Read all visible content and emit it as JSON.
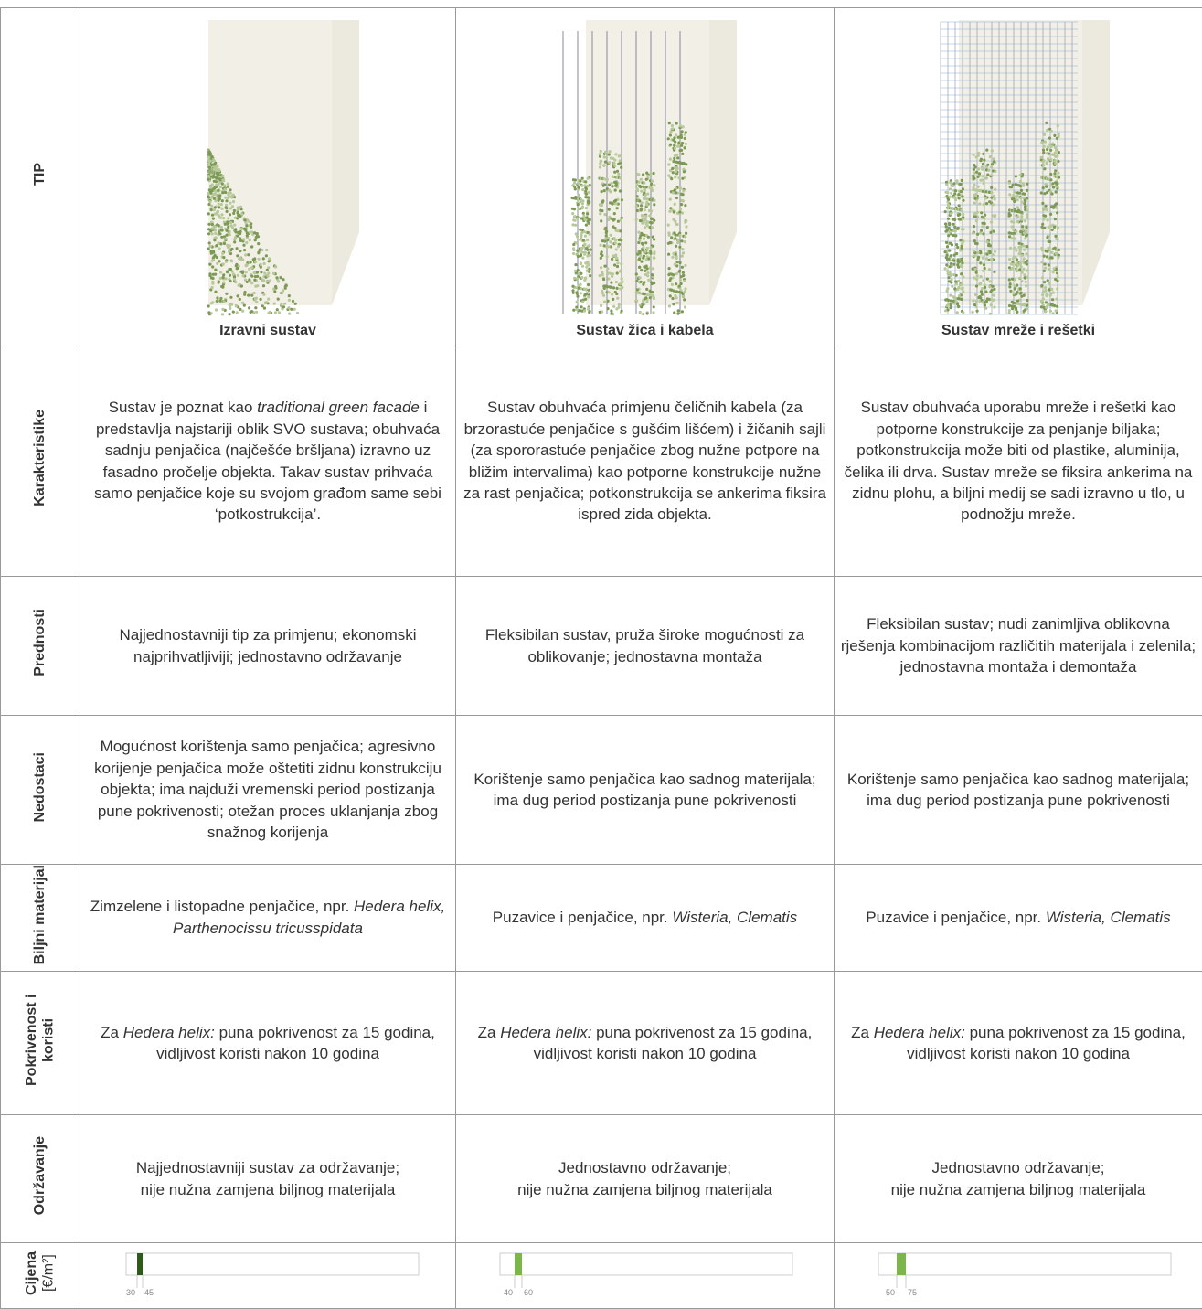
{
  "table": {
    "header": {
      "label": "TIP",
      "columns": [
        "Izravni sustav",
        "Sustav žica i kabela",
        "Sustav mreže i rešetki"
      ]
    },
    "rows": [
      {
        "label": "Karakteristike",
        "cells": [
          [
            "Sustav je poznat kao ",
            {
              "text": "traditional green facade",
              "em": true
            },
            " i predstavlja najstariji oblik SVO sustava; obuhvaća sadnju penjačica (najčešće bršljana) izravno uz fasadno pročelje objekta. Takav sustav prihvaća samo penjačice koje su svojom građom same sebi ‘potkostrukcija’."
          ],
          [
            "Sustav obuhvaća primjenu čeličnih kabela (za brzorastuće penjačice s gušćim lišćem) i žičanih sajli (za spororastuće penjačice zbog nužne potpore na bližim intervalima) kao potporne konstrukcije nužne za rast penjačica; potkonstrukcija se ankerima fiksira ispred zida objekta."
          ],
          [
            "Sustav obuhvaća uporabu mreže i rešetki kao potporne konstrukcije za penjanje biljaka; potkonstrukcija može biti od plastike, aluminija, čelika ili drva. Sustav mreže se fiksira ankerima na zidnu plohu, a biljni medij se sadi izravno u tlo, u podnožju mreže."
          ]
        ]
      },
      {
        "label": "Prednosti",
        "cells": [
          [
            "Najjednostavniji tip za primjenu; ekonomski najprihvatljiviji; jednostavno održavanje"
          ],
          [
            "Fleksibilan sustav, pruža široke mogućnosti za oblikovanje; jednostavna montaža"
          ],
          [
            "Fleksibilan sustav; nudi zanimljiva oblikovna rješenja kombinacijom različitih materijala i zelenila; jednostavna montaža i demontaža"
          ]
        ]
      },
      {
        "label": "Nedostaci",
        "cells": [
          [
            "Mogućnost korištenja samo penjačica; agresivno korijenje penjačica može oštetiti zidnu konstrukciju objekta; ima najduži vremenski period postizanja pune pokrivenosti; otežan proces uklanjanja zbog snažnog korijenja"
          ],
          [
            "Korištenje samo penjačica kao sadnog materijala; ima dug period postizanja pune pokrivenosti"
          ],
          [
            "Korištenje samo penjačica kao sadnog materijala; ima dug period postizanja pune pokrivenosti"
          ]
        ]
      },
      {
        "label": "Biljni materijal",
        "cells": [
          [
            "Zimzelene i listopadne penjačice, npr. ",
            {
              "text": "Hedera helix, Parthenocissu tricusspidata",
              "em": true
            }
          ],
          [
            "Puzavice i penjačice, npr. ",
            {
              "text": "Wisteria, Clematis",
              "em": true
            }
          ],
          [
            "Puzavice i penjačice, npr. ",
            {
              "text": "Wisteria, Clematis",
              "em": true
            }
          ]
        ]
      },
      {
        "label": "Pokrivenost i koristi",
        "cells": [
          [
            "Za ",
            {
              "text": "Hedera helix:",
              "em": true
            },
            " puna pokrivenost za 15 godina, vidljivost koristi nakon 10 godina"
          ],
          [
            "Za ",
            {
              "text": "Hedera helix:",
              "em": true
            },
            " puna pokrivenost za 15 godina, vidljivost koristi nakon 10 godina"
          ],
          [
            "Za ",
            {
              "text": "Hedera helix:",
              "em": true
            },
            " puna pokrivenost za 15 godina, vidljivost koristi nakon 10 godina"
          ]
        ]
      },
      {
        "label": "Održavanje",
        "cells": [
          [
            "Najjednostavniji sustav za održavanje;\nnije nužna zamjena biljnog materijala"
          ],
          [
            "Jednostavno održavanje;\nnije nužna zamjena biljnog materijala"
          ],
          [
            "Jednostavno održavanje;\nnije nužna zamjena biljnog materijala"
          ]
        ]
      }
    ],
    "price": {
      "label": "Cijena",
      "unit": "[€/m²]",
      "color": "#7ab648",
      "first_color": "#2f5a1c",
      "cells": [
        {
          "min": 30,
          "max": 45
        },
        {
          "min": 40,
          "max": 60
        },
        {
          "min": 50,
          "max": 75
        }
      ]
    }
  }
}
